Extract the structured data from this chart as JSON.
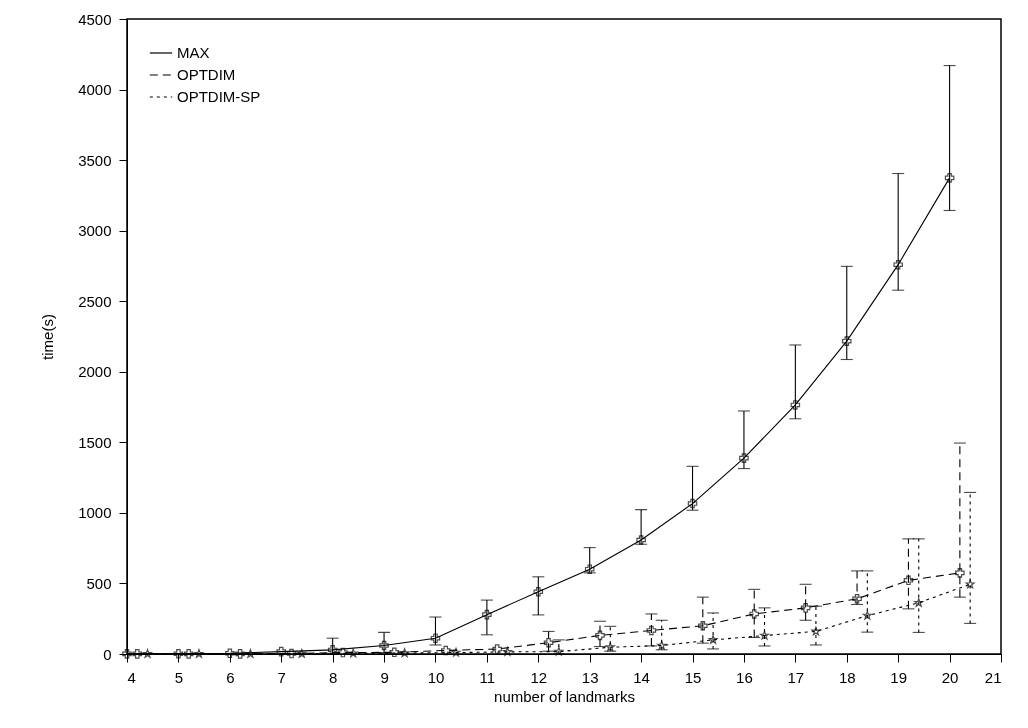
{
  "chart_data": {
    "type": "line",
    "xlabel": "number of landmarks",
    "ylabel": "time(s)",
    "xlim": [
      4,
      21
    ],
    "xticks": [
      4,
      5,
      6,
      7,
      8,
      9,
      10,
      11,
      12,
      13,
      14,
      15,
      16,
      17,
      18,
      19,
      20,
      21
    ],
    "ylim": [
      0,
      4500
    ],
    "yticks": [
      0,
      500,
      1000,
      1500,
      2000,
      2500,
      3000,
      3500,
      4000,
      4500
    ],
    "grid": false,
    "legend": "top left",
    "series": [
      {
        "name": "MAX",
        "color": "#000000",
        "line_style": "solid",
        "marker": "cross",
        "x": [
          4,
          5,
          6,
          7,
          8,
          9,
          10,
          11,
          12,
          13,
          14,
          15,
          16,
          17,
          18,
          19,
          20
        ],
        "values": [
          1,
          2,
          5,
          17,
          29,
          60,
          112,
          279,
          441,
          601,
          808,
          1066,
          1388,
          1765,
          2217,
          2759,
          3374
        ],
        "errors": [
          null,
          null,
          null,
          null,
          [
            0,
            112
          ],
          [
            10,
            153
          ],
          [
            64,
            262
          ],
          [
            136,
            382
          ],
          [
            277,
            547
          ],
          [
            575,
            754
          ],
          [
            778,
            1023
          ],
          [
            1019,
            1330
          ],
          [
            1314,
            1722
          ],
          [
            1667,
            2190
          ],
          [
            2087,
            2747
          ],
          [
            2578,
            3405
          ],
          [
            3143,
            4170
          ]
        ]
      },
      {
        "name": "OPTDIM",
        "color": "#000000",
        "line_style": "dashed",
        "marker": "cross",
        "x": [
          4.2,
          5.2,
          6.2,
          7.2,
          8.2,
          9.2,
          10.2,
          11.2,
          12.2,
          13.2,
          14.2,
          15.2,
          16.2,
          17.2,
          18.2,
          19.2,
          20.2
        ],
        "values": [
          1,
          1,
          1,
          3,
          10,
          12,
          25,
          35,
          80,
          132,
          167,
          200,
          284,
          327,
          391,
          522,
          575
        ],
        "errors": [
          null,
          null,
          null,
          null,
          null,
          null,
          null,
          null,
          [
            20,
            160
          ],
          [
            53,
            232
          ],
          [
            57,
            284
          ],
          [
            77,
            403
          ],
          [
            117,
            458
          ],
          [
            239,
            494
          ],
          [
            351,
            589
          ],
          [
            320,
            816
          ],
          [
            403,
            1495
          ]
        ]
      },
      {
        "name": "OPTDIM-SP",
        "color": "#000000",
        "line_style": "dotted",
        "marker": "star",
        "x": [
          4.4,
          5.4,
          6.4,
          7.4,
          8.4,
          9.4,
          10.4,
          11.4,
          12.4,
          13.4,
          14.4,
          15.4,
          16.4,
          17.4,
          18.4,
          19.4,
          20.4
        ],
        "values": [
          1,
          1,
          1,
          2,
          5,
          7,
          10,
          15,
          17,
          48,
          60,
          100,
          131,
          160,
          272,
          363,
          494
        ],
        "errors": [
          null,
          null,
          null,
          null,
          null,
          null,
          null,
          null,
          [
            0,
            100
          ],
          [
            20,
            196
          ],
          [
            30,
            239
          ],
          [
            36,
            291
          ],
          [
            57,
            327
          ],
          [
            64,
            339
          ],
          [
            155,
            589
          ],
          [
            153,
            816
          ],
          [
            217,
            1145
          ]
        ]
      }
    ]
  }
}
